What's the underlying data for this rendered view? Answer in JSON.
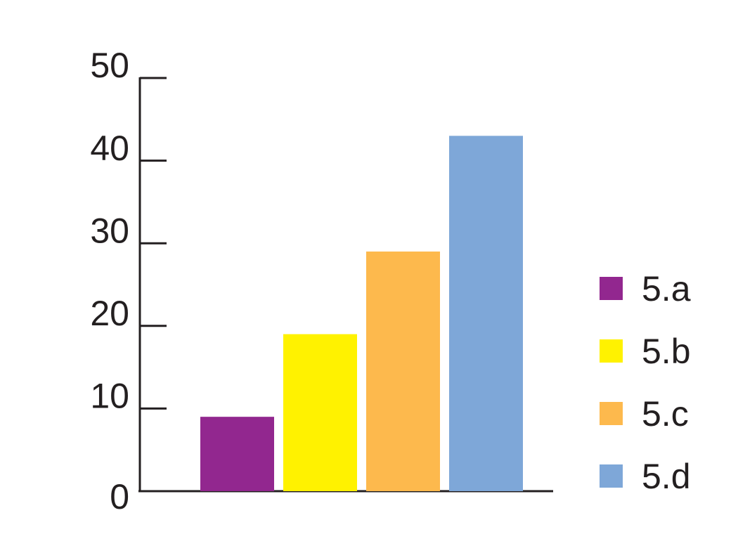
{
  "chart_data": {
    "type": "bar",
    "categories": [
      null
    ],
    "series": [
      {
        "name": "5.a",
        "color": "#92278f",
        "values": [
          9
        ]
      },
      {
        "name": "5.b",
        "color": "#fff200",
        "values": [
          19
        ]
      },
      {
        "name": "5.c",
        "color": "#fdb94d",
        "values": [
          29
        ]
      },
      {
        "name": "5.d",
        "color": "#7ea7d8",
        "values": [
          43
        ]
      }
    ],
    "ylim": [
      0,
      50
    ],
    "yticks": [
      0,
      10,
      20,
      30,
      40,
      50
    ],
    "grid": false,
    "legend": "right"
  }
}
